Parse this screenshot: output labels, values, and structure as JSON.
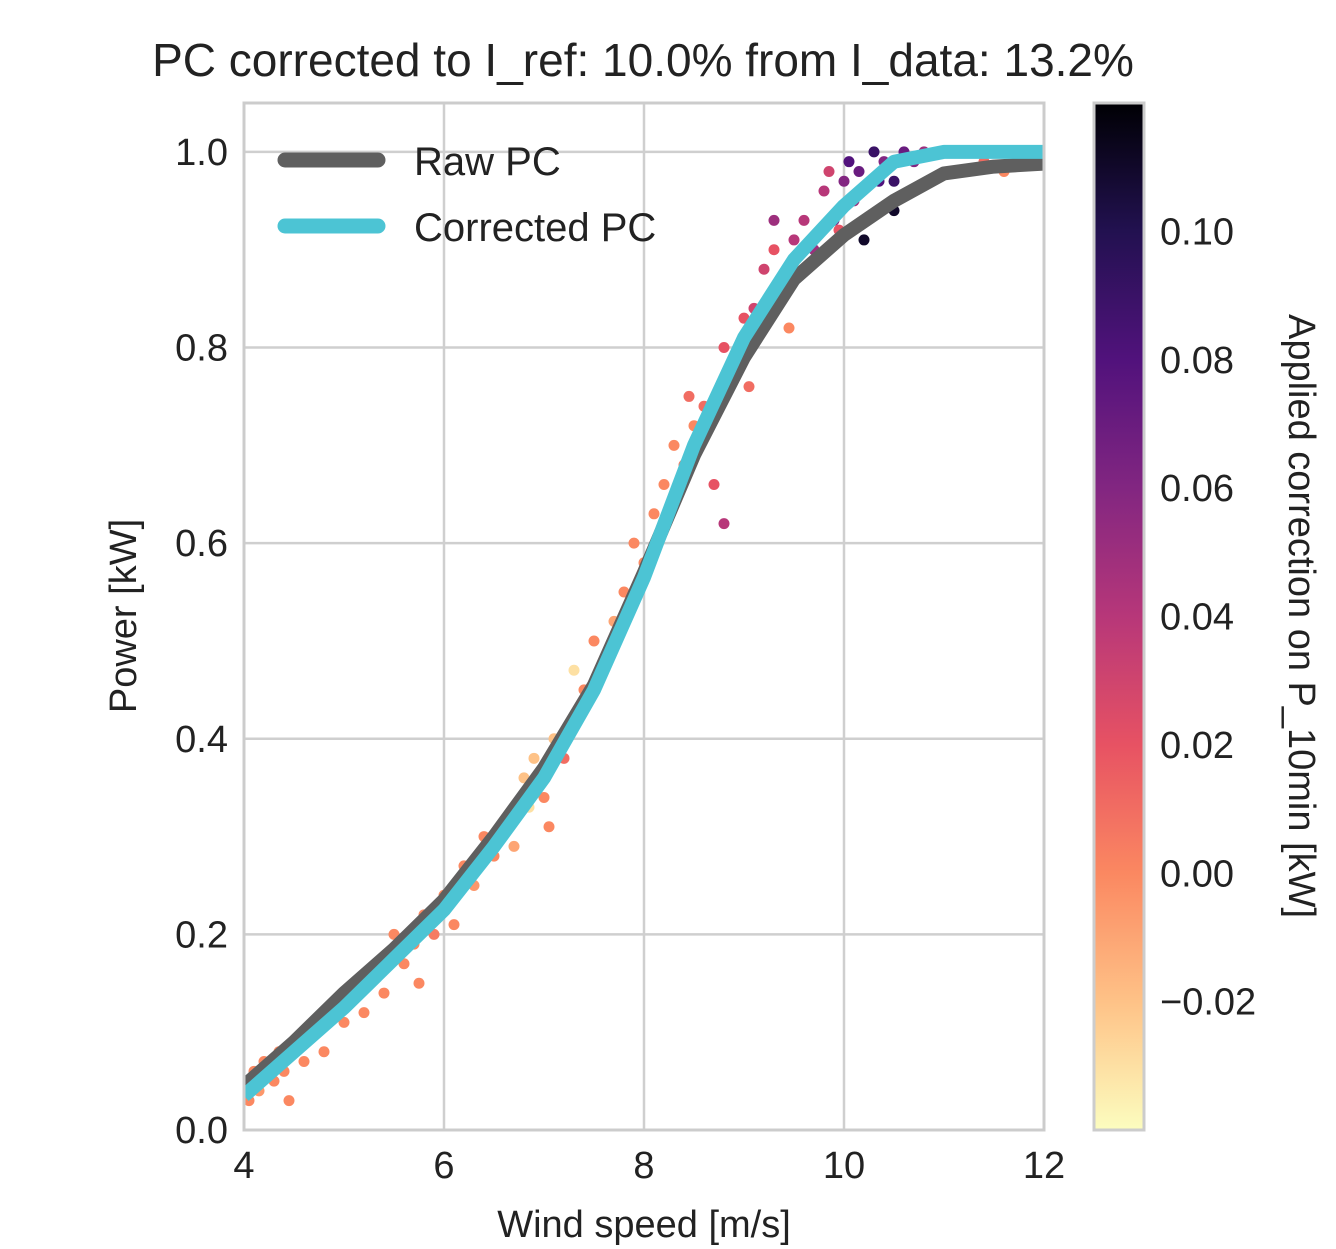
{
  "chart_data": {
    "type": "scatter",
    "title": "PC corrected to I_ref: 10.0% from I_data: 13.2%",
    "xlabel": "Wind speed [m/s]",
    "ylabel": "Power [kW]",
    "xlim": [
      4,
      12
    ],
    "ylim": [
      0,
      1.05
    ],
    "xticks": [
      4,
      6,
      8,
      10,
      12
    ],
    "xtick_labels": [
      "4",
      "6",
      "8",
      "10",
      "12"
    ],
    "yticks": [
      0.0,
      0.2,
      0.4,
      0.6,
      0.8,
      1.0
    ],
    "ytick_labels": [
      "0.0",
      "0.2",
      "0.4",
      "0.6",
      "0.8",
      "1.0"
    ],
    "grid": true,
    "legend_position": "top-left",
    "series": [
      {
        "name": "Raw PC",
        "kind": "line",
        "color": "#5f5f5f",
        "x": [
          4.0,
          4.5,
          5.0,
          5.5,
          6.0,
          6.5,
          7.0,
          7.5,
          8.0,
          8.5,
          9.0,
          9.5,
          10.0,
          10.5,
          11.0,
          11.5,
          12.0
        ],
        "y": [
          0.045,
          0.09,
          0.14,
          0.185,
          0.235,
          0.3,
          0.37,
          0.455,
          0.57,
          0.69,
          0.79,
          0.87,
          0.915,
          0.95,
          0.978,
          0.985,
          0.988
        ]
      },
      {
        "name": "Corrected PC",
        "kind": "line",
        "color": "#4cc4d4",
        "x": [
          4.0,
          4.5,
          5.0,
          5.5,
          6.0,
          6.5,
          7.0,
          7.5,
          8.0,
          8.5,
          9.0,
          9.5,
          10.0,
          10.5,
          11.0,
          11.5,
          12.0
        ],
        "y": [
          0.035,
          0.08,
          0.125,
          0.175,
          0.225,
          0.29,
          0.36,
          0.45,
          0.565,
          0.7,
          0.81,
          0.89,
          0.945,
          0.99,
          1.0,
          1.0,
          1.0
        ]
      }
    ],
    "scatter_points": [
      [
        4.05,
        0.03,
        0.0
      ],
      [
        4.1,
        0.06,
        0.0
      ],
      [
        4.15,
        0.04,
        -0.005
      ],
      [
        4.2,
        0.07,
        0.0
      ],
      [
        4.3,
        0.05,
        0.0
      ],
      [
        4.35,
        0.08,
        0.0
      ],
      [
        4.4,
        0.06,
        0.0
      ],
      [
        4.45,
        0.03,
        0.0
      ],
      [
        4.5,
        0.09,
        0.0
      ],
      [
        4.6,
        0.07,
        0.0
      ],
      [
        4.7,
        0.1,
        0.0
      ],
      [
        4.8,
        0.08,
        0.0
      ],
      [
        4.9,
        0.12,
        0.0
      ],
      [
        5.0,
        0.11,
        0.0
      ],
      [
        5.1,
        0.14,
        0.0
      ],
      [
        5.2,
        0.12,
        0.0
      ],
      [
        5.3,
        0.16,
        0.0
      ],
      [
        5.4,
        0.14,
        0.0
      ],
      [
        5.5,
        0.2,
        0.0
      ],
      [
        5.6,
        0.17,
        0.0
      ],
      [
        5.7,
        0.19,
        0.0
      ],
      [
        5.75,
        0.15,
        0.0
      ],
      [
        5.8,
        0.22,
        0.0
      ],
      [
        5.9,
        0.2,
        0.005
      ],
      [
        6.0,
        0.24,
        0.0
      ],
      [
        6.1,
        0.21,
        0.0
      ],
      [
        6.2,
        0.27,
        0.0
      ],
      [
        6.3,
        0.25,
        -0.005
      ],
      [
        6.4,
        0.3,
        0.0
      ],
      [
        6.5,
        0.28,
        0.0
      ],
      [
        6.6,
        0.31,
        -0.02
      ],
      [
        6.7,
        0.29,
        -0.01
      ],
      [
        6.8,
        0.36,
        -0.02
      ],
      [
        6.85,
        0.33,
        -0.03
      ],
      [
        6.9,
        0.38,
        -0.02
      ],
      [
        7.0,
        0.34,
        0.0
      ],
      [
        7.05,
        0.31,
        0.0
      ],
      [
        7.1,
        0.4,
        -0.02
      ],
      [
        7.2,
        0.38,
        0.01
      ],
      [
        7.3,
        0.42,
        0.0
      ],
      [
        7.3,
        0.47,
        -0.03
      ],
      [
        7.4,
        0.45,
        0.0
      ],
      [
        7.5,
        0.5,
        0.0
      ],
      [
        7.6,
        0.48,
        0.0
      ],
      [
        7.7,
        0.52,
        -0.01
      ],
      [
        7.8,
        0.55,
        0.0
      ],
      [
        7.9,
        0.6,
        0.0
      ],
      [
        8.0,
        0.58,
        0.0
      ],
      [
        8.1,
        0.63,
        0.0
      ],
      [
        8.2,
        0.66,
        0.0
      ],
      [
        8.3,
        0.7,
        0.0
      ],
      [
        8.4,
        0.68,
        0.005
      ],
      [
        8.45,
        0.75,
        0.01
      ],
      [
        8.5,
        0.72,
        0.0
      ],
      [
        8.6,
        0.74,
        0.01
      ],
      [
        8.7,
        0.66,
        0.02
      ],
      [
        8.8,
        0.62,
        0.04
      ],
      [
        8.8,
        0.8,
        0.02
      ],
      [
        8.9,
        0.78,
        0.02
      ],
      [
        9.0,
        0.83,
        0.02
      ],
      [
        9.05,
        0.76,
        0.01
      ],
      [
        9.1,
        0.84,
        0.03
      ],
      [
        9.2,
        0.88,
        0.03
      ],
      [
        9.3,
        0.9,
        0.02
      ],
      [
        9.3,
        0.93,
        0.05
      ],
      [
        9.4,
        0.86,
        0.01
      ],
      [
        9.45,
        0.82,
        0.0
      ],
      [
        9.5,
        0.91,
        0.04
      ],
      [
        9.6,
        0.93,
        0.04
      ],
      [
        9.7,
        0.9,
        0.05
      ],
      [
        9.8,
        0.96,
        0.04
      ],
      [
        9.85,
        0.98,
        0.03
      ],
      [
        9.9,
        0.93,
        0.06
      ],
      [
        9.95,
        0.92,
        0.02
      ],
      [
        10.0,
        0.97,
        0.06
      ],
      [
        10.05,
        0.99,
        0.08
      ],
      [
        10.1,
        0.95,
        0.05
      ],
      [
        10.15,
        0.98,
        0.07
      ],
      [
        10.2,
        0.91,
        0.11
      ],
      [
        10.3,
        1.0,
        0.09
      ],
      [
        10.35,
        0.97,
        0.08
      ],
      [
        10.4,
        0.99,
        0.06
      ],
      [
        10.5,
        0.94,
        0.11
      ],
      [
        10.5,
        0.97,
        0.09
      ],
      [
        10.6,
        1.0,
        0.07
      ],
      [
        10.7,
        0.99,
        0.06
      ],
      [
        10.8,
        1.0,
        0.05
      ],
      [
        11.0,
        1.0,
        0.04
      ],
      [
        11.2,
        1.0,
        0.02
      ],
      [
        11.4,
        0.99,
        0.01
      ],
      [
        11.6,
        0.98,
        0.0
      ]
    ],
    "colorbar": {
      "label": "Applied correction on P_10min [kW]",
      "range": [
        -0.04,
        0.12
      ],
      "ticks": [
        0.1,
        0.08,
        0.06,
        0.04,
        0.02,
        0.0,
        -0.02
      ],
      "tick_labels": [
        "0.10",
        "0.08",
        "0.06",
        "0.04",
        "0.02",
        "0.00",
        "−0.02"
      ],
      "colormap": "magma_r",
      "stops": [
        "#fcfdbf",
        "#fec287",
        "#fb8861",
        "#e75263",
        "#b73779",
        "#822681",
        "#51127c",
        "#221150",
        "#000004"
      ]
    }
  }
}
